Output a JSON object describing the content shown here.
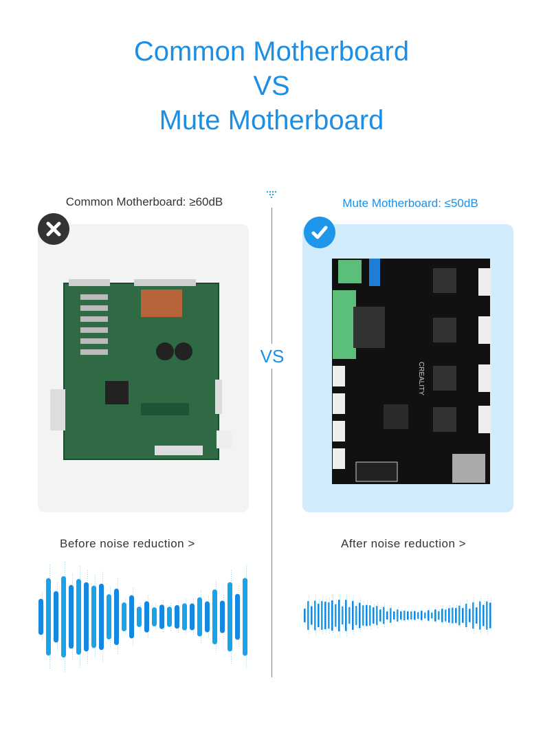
{
  "header": {
    "line1": "Common Motherboard",
    "line2": "VS",
    "line3": "Mute Motherboard"
  },
  "left": {
    "label": "Common Motherboard: ≥60dB",
    "badge_icon": "close-icon",
    "board_image": "common-motherboard-photo",
    "caption": "Before noise reduction >",
    "card_color": "#f3f3f3"
  },
  "right": {
    "label": "Mute Motherboard: ≤50dB",
    "badge_icon": "check-icon",
    "board_image": "mute-motherboard-photo",
    "board_text": "CREALITY",
    "caption": "After noise reduction >",
    "card_color": "#d3ecfb"
  },
  "divider": {
    "label": "VS"
  },
  "colors": {
    "accent": "#1b8fe6",
    "dark_badge": "#333333",
    "blue_badge": "#1e96ea"
  }
}
